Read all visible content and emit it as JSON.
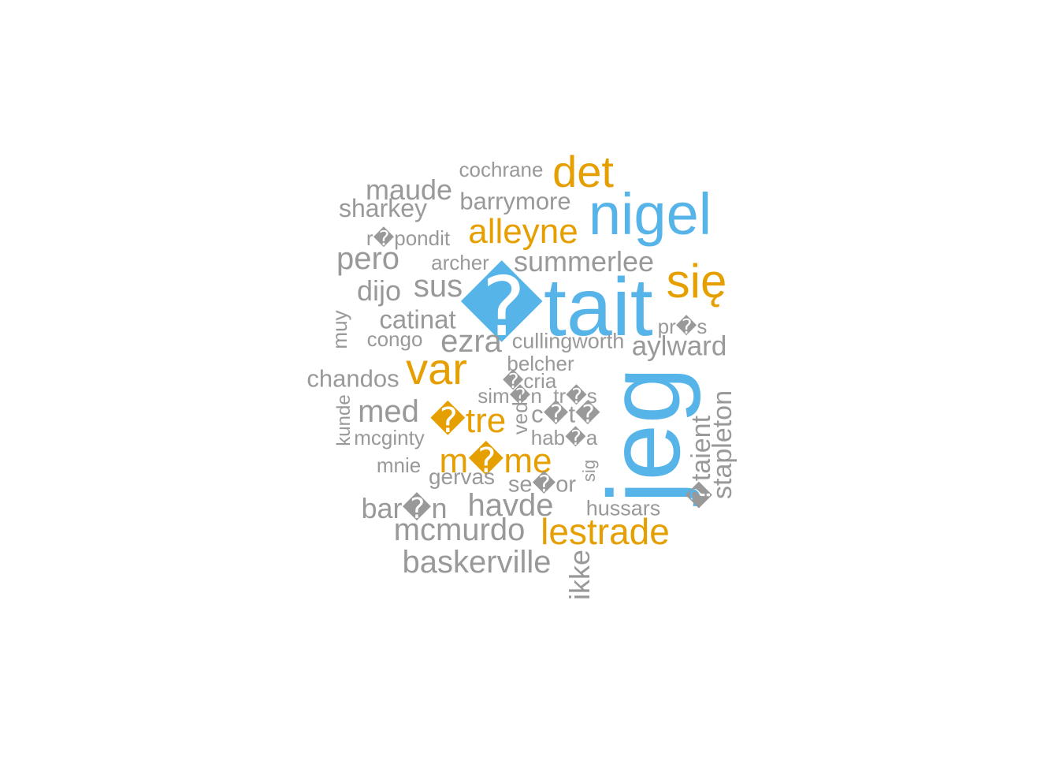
{
  "colors": {
    "blue": "#56B4E9",
    "orange": "#E69F00",
    "gray": "#999999"
  },
  "words": [
    {
      "text": "cochrane",
      "color": "gray"
    },
    {
      "text": "det",
      "color": "orange"
    },
    {
      "text": "maude",
      "color": "gray"
    },
    {
      "text": "barrymore",
      "color": "gray"
    },
    {
      "text": "sharkey",
      "color": "gray"
    },
    {
      "text": "nigel",
      "color": "blue"
    },
    {
      "text": "alleyne",
      "color": "orange"
    },
    {
      "text": "r�pondit",
      "color": "gray"
    },
    {
      "text": "pero",
      "color": "gray"
    },
    {
      "text": "archer",
      "color": "gray"
    },
    {
      "text": "summerlee",
      "color": "gray"
    },
    {
      "text": "się",
      "color": "orange"
    },
    {
      "text": "dijo",
      "color": "gray"
    },
    {
      "text": "sus",
      "color": "gray"
    },
    {
      "text": "�tait",
      "color": "blue"
    },
    {
      "text": "muy",
      "color": "gray",
      "vertical": true
    },
    {
      "text": "catinat",
      "color": "gray"
    },
    {
      "text": "pr�s",
      "color": "gray"
    },
    {
      "text": "congo",
      "color": "gray"
    },
    {
      "text": "ezra",
      "color": "gray"
    },
    {
      "text": "cullingworth",
      "color": "gray"
    },
    {
      "text": "aylward",
      "color": "gray"
    },
    {
      "text": "var",
      "color": "orange"
    },
    {
      "text": "belcher",
      "color": "gray"
    },
    {
      "text": "chandos",
      "color": "gray"
    },
    {
      "text": "�cria",
      "color": "gray"
    },
    {
      "text": "sim�n",
      "color": "gray"
    },
    {
      "text": "tr�s",
      "color": "gray"
    },
    {
      "text": "jeg",
      "color": "blue",
      "vertical": true
    },
    {
      "text": "kunde",
      "color": "gray",
      "vertical": true
    },
    {
      "text": "med",
      "color": "gray"
    },
    {
      "text": "�tre",
      "color": "orange"
    },
    {
      "text": "c�t�",
      "color": "gray"
    },
    {
      "text": "vede",
      "color": "gray",
      "vertical": true
    },
    {
      "text": "�taient",
      "color": "gray",
      "vertical": true
    },
    {
      "text": "stapleton",
      "color": "gray",
      "vertical": true
    },
    {
      "text": "mcginty",
      "color": "gray"
    },
    {
      "text": "hab�a",
      "color": "gray"
    },
    {
      "text": "m�me",
      "color": "orange"
    },
    {
      "text": "mnie",
      "color": "gray"
    },
    {
      "text": "gervas",
      "color": "gray"
    },
    {
      "text": "sig",
      "color": "gray",
      "vertical": true
    },
    {
      "text": "se�or",
      "color": "gray"
    },
    {
      "text": "bar�n",
      "color": "gray"
    },
    {
      "text": "havde",
      "color": "gray"
    },
    {
      "text": "hussars",
      "color": "gray"
    },
    {
      "text": "mcmurdo",
      "color": "gray"
    },
    {
      "text": "lestrade",
      "color": "orange"
    },
    {
      "text": "baskerville",
      "color": "gray"
    },
    {
      "text": "ikke",
      "color": "gray",
      "vertical": true
    }
  ]
}
